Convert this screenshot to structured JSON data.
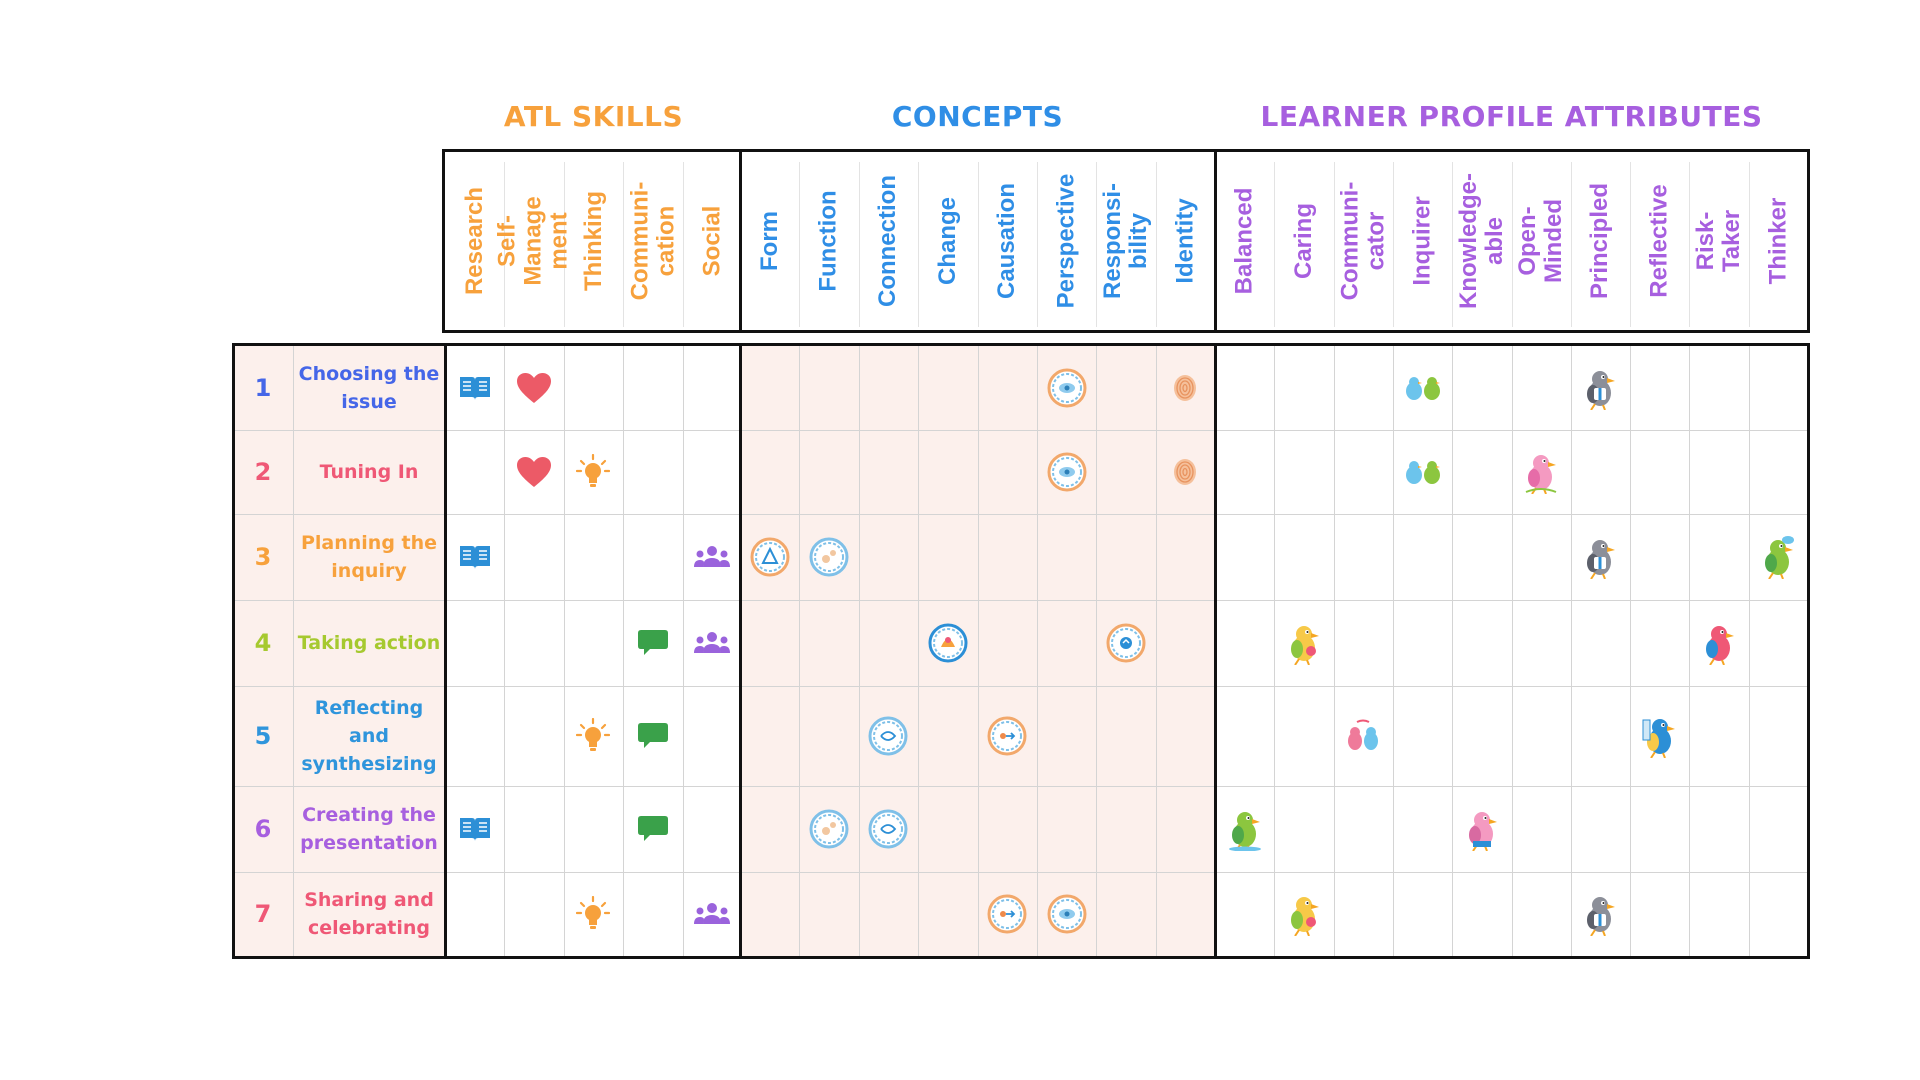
{
  "sections": {
    "atl": {
      "title": "ATL SKILLS",
      "color": "#f7a13c"
    },
    "concepts": {
      "title": "CONCEPTS",
      "color": "#2f8ee6"
    },
    "learner": {
      "title": "LEARNER PROFILE ATTRIBUTES",
      "color": "#a75fdf"
    }
  },
  "atl_skills": [
    "Research",
    "Self-Manage\nment",
    "Thinking",
    "Communi-\ncation",
    "Social"
  ],
  "concepts": [
    "Form",
    "Function",
    "Connection",
    "Change",
    "Causation",
    "Perspective",
    "Responsi-\nbility",
    "Identity"
  ],
  "learner_profile": [
    "Balanced",
    "Caring",
    "Communi-\ncator",
    "Inquirer",
    "Knowledge-\nable",
    "Open-Minded",
    "Principled",
    "Reflective",
    "Risk-Taker",
    "Thinker"
  ],
  "stages": [
    {
      "num": "1",
      "label": "Choosing the issue",
      "color": "#4566e8",
      "atl": [
        "book-icon",
        "heart-icon",
        "",
        "",
        ""
      ],
      "concepts": [
        "",
        "",
        "",
        "",
        "",
        "perspective-badge-icon",
        "",
        "fingerprint-icon"
      ],
      "learner": [
        "",
        "",
        "",
        "inquirer-birds-icon",
        "",
        "",
        "principled-bird-icon",
        "",
        "",
        ""
      ]
    },
    {
      "num": "2",
      "label": "Tuning In",
      "color": "#ef5876",
      "atl": [
        "",
        "heart-icon",
        "lightbulb-icon",
        "",
        ""
      ],
      "concepts": [
        "",
        "",
        "",
        "",
        "",
        "perspective-badge-icon",
        "",
        "fingerprint-icon"
      ],
      "learner": [
        "",
        "",
        "",
        "inquirer-birds-icon",
        "",
        "openminded-bird-icon",
        "",
        "",
        "",
        ""
      ]
    },
    {
      "num": "3",
      "label": "Planning the inquiry",
      "color": "#f7a13c",
      "atl": [
        "book-icon",
        "",
        "",
        "",
        "people-icon"
      ],
      "concepts": [
        "form-badge-icon",
        "function-badge-icon",
        "",
        "",
        "",
        "",
        "",
        ""
      ],
      "learner": [
        "",
        "",
        "",
        "",
        "",
        "",
        "principled-bird-icon",
        "",
        "",
        "thinker-bird-icon"
      ]
    },
    {
      "num": "4",
      "label": "Taking action",
      "color": "#a6c92f",
      "atl": [
        "",
        "",
        "",
        "chat-icon",
        "people-icon"
      ],
      "concepts": [
        "",
        "",
        "",
        "change-badge-icon",
        "",
        "",
        "responsibility-badge-icon",
        ""
      ],
      "learner": [
        "",
        "caring-bird-icon",
        "",
        "",
        "",
        "",
        "",
        "",
        "risktaker-bird-icon",
        ""
      ]
    },
    {
      "num": "5",
      "label": "Reflecting and synthesizing",
      "color": "#2f95dc",
      "atl": [
        "",
        "",
        "lightbulb-icon",
        "chat-icon",
        ""
      ],
      "concepts": [
        "",
        "",
        "connection-badge-icon",
        "",
        "causation-badge-icon",
        "",
        "",
        ""
      ],
      "learner": [
        "",
        "",
        "communicator-birds-icon",
        "",
        "",
        "",
        "",
        "reflective-bird-icon",
        "",
        ""
      ]
    },
    {
      "num": "6",
      "label": "Creating the presentation",
      "color": "#a75fdf",
      "atl": [
        "book-icon",
        "",
        "",
        "chat-icon",
        ""
      ],
      "concepts": [
        "",
        "function-badge-icon",
        "connection-badge-icon",
        "",
        "",
        "",
        "",
        ""
      ],
      "learner": [
        "balanced-bird-icon",
        "",
        "",
        "",
        "knowledgeable-bird-icon",
        "",
        "",
        "",
        "",
        ""
      ]
    },
    {
      "num": "7",
      "label": "Sharing and celebrating",
      "color": "#ef5876",
      "atl": [
        "",
        "",
        "lightbulb-icon",
        "",
        "people-icon"
      ],
      "concepts": [
        "",
        "",
        "",
        "",
        "causation-badge-icon",
        "perspective-badge-icon",
        "",
        ""
      ],
      "learner": [
        "",
        "caring-bird-icon",
        "",
        "",
        "",
        "",
        "principled-bird-icon",
        "",
        "",
        ""
      ]
    }
  ]
}
